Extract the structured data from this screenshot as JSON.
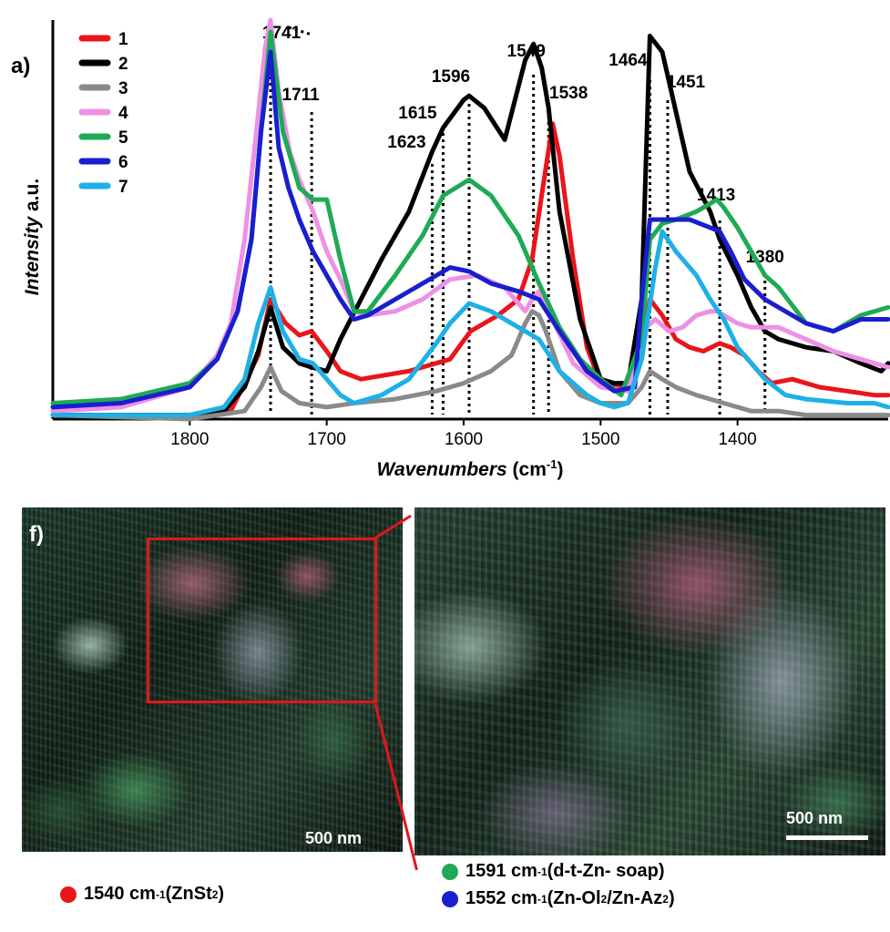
{
  "chart_data": {
    "type": "line",
    "panel_label": "a)",
    "xlabel_italic": "Wavenumbers",
    "xlabel_unit_base": "(cm",
    "xlabel_unit_exp": "-1",
    "xlabel_unit_close": ")",
    "ylabel_italic": "Intensity",
    "ylabel_suffix": "a.u.",
    "xlim": [
      1900,
      1290
    ],
    "ylim": [
      0,
      1
    ],
    "x_ticks": [
      1800,
      1700,
      1600,
      1500,
      1400
    ],
    "marker_lines": [
      {
        "label": "1741",
        "x": 1741
      },
      {
        "label": "1711",
        "x": 1711
      },
      {
        "label": "1623",
        "x": 1623
      },
      {
        "label": "1615",
        "x": 1615
      },
      {
        "label": "1596",
        "x": 1596
      },
      {
        "label": "1549",
        "x": 1549
      },
      {
        "label": "1538",
        "x": 1538
      },
      {
        "label": "1464",
        "x": 1464
      },
      {
        "label": "1451",
        "x": 1451
      },
      {
        "label": "1413",
        "x": 1413
      },
      {
        "label": "1380",
        "x": 1380
      }
    ],
    "series": [
      {
        "name": "1",
        "color": "#e8161b",
        "x": [
          1900,
          1800,
          1770,
          1750,
          1741,
          1730,
          1720,
          1711,
          1700,
          1690,
          1675,
          1640,
          1610,
          1595,
          1575,
          1560,
          1550,
          1540,
          1535,
          1530,
          1520,
          1510,
          1500,
          1490,
          1480,
          1470,
          1464,
          1455,
          1445,
          1435,
          1425,
          1413,
          1405,
          1395,
          1385,
          1375,
          1360,
          1340,
          1320,
          1300,
          1290
        ],
        "y": [
          0.01,
          0.01,
          0.02,
          0.16,
          0.3,
          0.24,
          0.21,
          0.22,
          0.17,
          0.12,
          0.1,
          0.12,
          0.15,
          0.22,
          0.26,
          0.3,
          0.4,
          0.63,
          0.74,
          0.66,
          0.4,
          0.18,
          0.09,
          0.08,
          0.09,
          0.15,
          0.3,
          0.26,
          0.2,
          0.18,
          0.17,
          0.19,
          0.18,
          0.16,
          0.12,
          0.09,
          0.1,
          0.08,
          0.07,
          0.06,
          0.06
        ]
      },
      {
        "name": "2",
        "color": "#000000",
        "x": [
          1900,
          1800,
          1775,
          1760,
          1750,
          1741,
          1732,
          1720,
          1711,
          1700,
          1690,
          1675,
          1660,
          1640,
          1623,
          1615,
          1600,
          1596,
          1585,
          1570,
          1555,
          1549,
          1543,
          1538,
          1530,
          1515,
          1500,
          1490,
          1480,
          1470,
          1464,
          1455,
          1445,
          1435,
          1420,
          1413,
          1400,
          1390,
          1380,
          1370,
          1350,
          1330,
          1310,
          1295,
          1290
        ],
        "y": [
          0.01,
          0.01,
          0.02,
          0.08,
          0.17,
          0.28,
          0.18,
          0.14,
          0.13,
          0.12,
          0.2,
          0.3,
          0.4,
          0.52,
          0.67,
          0.73,
          0.8,
          0.81,
          0.78,
          0.7,
          0.9,
          0.94,
          0.88,
          0.78,
          0.52,
          0.25,
          0.1,
          0.09,
          0.09,
          0.3,
          0.96,
          0.92,
          0.77,
          0.62,
          0.52,
          0.45,
          0.36,
          0.28,
          0.22,
          0.2,
          0.18,
          0.17,
          0.14,
          0.12,
          0.14
        ]
      },
      {
        "name": "3",
        "color": "#8a8a8a",
        "x": [
          1900,
          1800,
          1760,
          1748,
          1741,
          1733,
          1720,
          1700,
          1680,
          1650,
          1620,
          1600,
          1580,
          1565,
          1555,
          1550,
          1545,
          1540,
          1530,
          1515,
          1500,
          1480,
          1470,
          1464,
          1455,
          1445,
          1430,
          1410,
          1390,
          1370,
          1350,
          1320,
          1290
        ],
        "y": [
          0.01,
          0.0,
          0.02,
          0.08,
          0.13,
          0.07,
          0.04,
          0.03,
          0.04,
          0.05,
          0.07,
          0.09,
          0.12,
          0.16,
          0.24,
          0.27,
          0.26,
          0.22,
          0.12,
          0.06,
          0.04,
          0.04,
          0.08,
          0.12,
          0.1,
          0.08,
          0.06,
          0.04,
          0.02,
          0.02,
          0.01,
          0.01,
          0.01
        ]
      },
      {
        "name": "4",
        "color": "#ee90e6",
        "x": [
          1900,
          1850,
          1800,
          1780,
          1770,
          1760,
          1752,
          1745,
          1741,
          1735,
          1727,
          1720,
          1710,
          1700,
          1690,
          1680,
          1670,
          1650,
          1630,
          1610,
          1590,
          1570,
          1555,
          1550,
          1545,
          1535,
          1520,
          1500,
          1480,
          1470,
          1460,
          1450,
          1440,
          1430,
          1420,
          1415,
          1400,
          1390,
          1370,
          1350,
          1330,
          1300,
          1290
        ],
        "y": [
          0.02,
          0.03,
          0.08,
          0.16,
          0.24,
          0.45,
          0.7,
          0.93,
          1.0,
          0.82,
          0.67,
          0.6,
          0.52,
          0.42,
          0.35,
          0.27,
          0.26,
          0.27,
          0.3,
          0.35,
          0.36,
          0.33,
          0.27,
          0.3,
          0.32,
          0.25,
          0.14,
          0.08,
          0.07,
          0.22,
          0.25,
          0.22,
          0.23,
          0.26,
          0.27,
          0.27,
          0.24,
          0.23,
          0.23,
          0.2,
          0.17,
          0.14,
          0.13
        ]
      },
      {
        "name": "5",
        "color": "#1faa55",
        "x": [
          1900,
          1850,
          1800,
          1780,
          1765,
          1755,
          1748,
          1741,
          1732,
          1720,
          1710,
          1700,
          1690,
          1680,
          1670,
          1650,
          1630,
          1615,
          1596,
          1580,
          1560,
          1545,
          1530,
          1515,
          1500,
          1485,
          1470,
          1464,
          1455,
          1445,
          1430,
          1415,
          1410,
          1400,
          1390,
          1380,
          1370,
          1350,
          1330,
          1310,
          1290
        ],
        "y": [
          0.04,
          0.05,
          0.09,
          0.15,
          0.27,
          0.45,
          0.72,
          0.97,
          0.72,
          0.58,
          0.55,
          0.55,
          0.4,
          0.27,
          0.27,
          0.36,
          0.46,
          0.56,
          0.6,
          0.56,
          0.46,
          0.34,
          0.23,
          0.15,
          0.1,
          0.06,
          0.2,
          0.45,
          0.49,
          0.5,
          0.52,
          0.55,
          0.53,
          0.48,
          0.42,
          0.36,
          0.33,
          0.24,
          0.22,
          0.26,
          0.28
        ]
      },
      {
        "name": "6",
        "color": "#1a1ecf",
        "x": [
          1900,
          1850,
          1800,
          1780,
          1765,
          1755,
          1748,
          1741,
          1735,
          1728,
          1720,
          1710,
          1700,
          1690,
          1680,
          1670,
          1650,
          1630,
          1610,
          1596,
          1580,
          1560,
          1545,
          1530,
          1510,
          1490,
          1475,
          1470,
          1464,
          1455,
          1445,
          1435,
          1420,
          1413,
          1405,
          1395,
          1380,
          1370,
          1350,
          1330,
          1310,
          1290
        ],
        "y": [
          0.03,
          0.04,
          0.08,
          0.15,
          0.27,
          0.45,
          0.72,
          0.92,
          0.68,
          0.58,
          0.5,
          0.42,
          0.36,
          0.3,
          0.25,
          0.26,
          0.3,
          0.34,
          0.38,
          0.37,
          0.34,
          0.32,
          0.3,
          0.22,
          0.12,
          0.07,
          0.08,
          0.3,
          0.5,
          0.5,
          0.5,
          0.5,
          0.48,
          0.47,
          0.42,
          0.35,
          0.3,
          0.28,
          0.24,
          0.22,
          0.25,
          0.25
        ]
      },
      {
        "name": "7",
        "color": "#1eb0e6",
        "x": [
          1900,
          1800,
          1775,
          1760,
          1750,
          1741,
          1732,
          1720,
          1710,
          1700,
          1690,
          1680,
          1660,
          1640,
          1620,
          1610,
          1596,
          1580,
          1560,
          1545,
          1530,
          1510,
          1500,
          1490,
          1480,
          1470,
          1460,
          1455,
          1445,
          1430,
          1420,
          1410,
          1400,
          1390,
          1380,
          1365,
          1350,
          1320,
          1300,
          1290
        ],
        "y": [
          0.01,
          0.01,
          0.03,
          0.1,
          0.24,
          0.33,
          0.22,
          0.15,
          0.14,
          0.1,
          0.06,
          0.04,
          0.06,
          0.1,
          0.19,
          0.24,
          0.29,
          0.27,
          0.23,
          0.2,
          0.12,
          0.06,
          0.04,
          0.03,
          0.04,
          0.15,
          0.38,
          0.47,
          0.42,
          0.36,
          0.3,
          0.25,
          0.18,
          0.14,
          0.1,
          0.06,
          0.05,
          0.04,
          0.04,
          0.03
        ]
      }
    ]
  },
  "micrograph": {
    "panel_label": "f)",
    "scale_bar_left": "500 nm",
    "scale_bar_right": "500 nm",
    "zoom_color": "#e0161b"
  },
  "map_legend": [
    {
      "color": "#e8161b",
      "wavenumber": "1540 cm",
      "exp": "-1",
      "text_a": " (ZnSt",
      "sub_a": "2",
      "text_b": ")",
      "sub_b": "",
      "text_c": ""
    },
    {
      "color": "#1faa55",
      "wavenumber": "1591 cm",
      "exp": "-1",
      "text_a": " (d-t-Zn- soap)",
      "sub_a": "",
      "text_b": "",
      "sub_b": "",
      "text_c": ""
    },
    {
      "color": "#1a1ecf",
      "wavenumber": "1552 cm",
      "exp": "-1",
      "text_a": " (Zn-Ol",
      "sub_a": "2",
      "text_b": " /Zn-Az",
      "sub_b": "2",
      "text_c": ")"
    }
  ]
}
